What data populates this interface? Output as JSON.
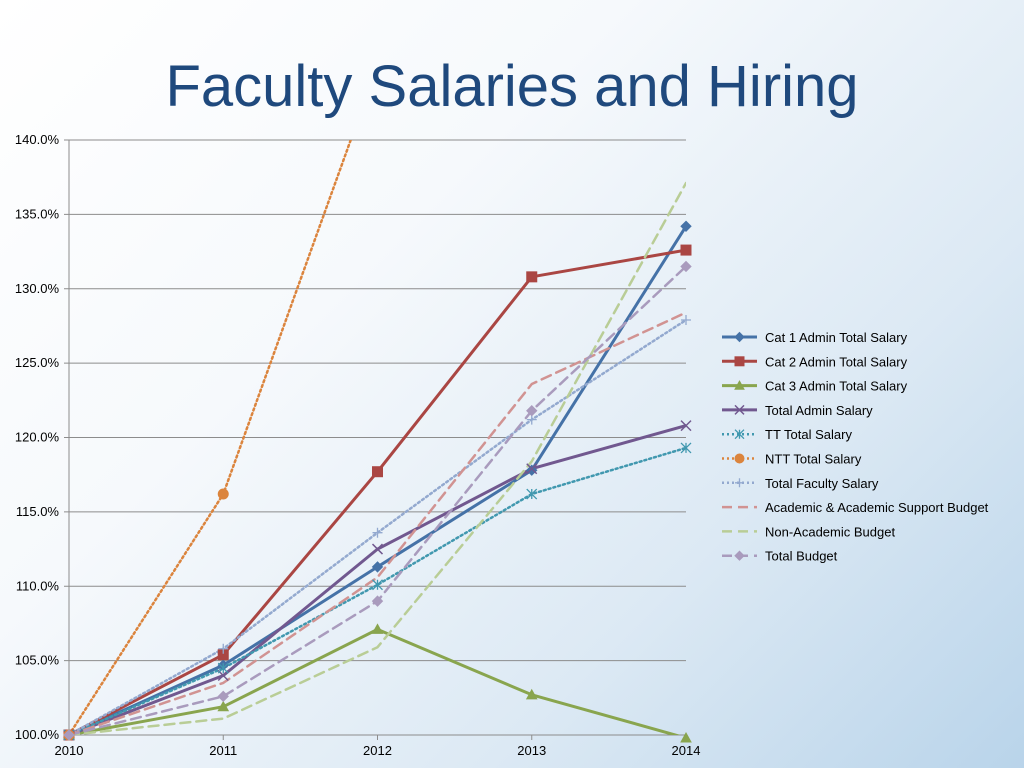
{
  "slide": {
    "title": "Faculty Salaries and Hiring"
  },
  "chart_data": {
    "type": "line",
    "title": "",
    "xlabel": "",
    "ylabel": "",
    "categories": [
      "2010",
      "2011",
      "2012",
      "2013",
      "2014"
    ],
    "ylim": [
      100,
      140
    ],
    "yticks": [
      100,
      105,
      110,
      115,
      120,
      125,
      130,
      135,
      140
    ],
    "ytick_format": "percent_1dp",
    "grid": "horizontal",
    "legend_position": "right",
    "series": [
      {
        "name": "Cat 1 Admin Total Salary",
        "values": [
          100,
          104.7,
          111.3,
          117.8,
          134.2
        ],
        "color": "#4572a7",
        "dash": "solid",
        "marker": "diamond",
        "markers": true
      },
      {
        "name": "Cat 2 Admin Total Salary",
        "values": [
          100,
          105.4,
          117.7,
          130.8,
          132.6
        ],
        "color": "#aa4643",
        "dash": "solid",
        "marker": "square",
        "markers": true
      },
      {
        "name": "Cat 3 Admin Total Salary",
        "values": [
          100,
          101.9,
          107.1,
          102.7,
          99.8
        ],
        "color": "#89a54e",
        "dash": "solid",
        "marker": "triangle",
        "markers": true
      },
      {
        "name": "Total Admin Salary",
        "values": [
          100,
          104.0,
          112.5,
          117.9,
          120.8
        ],
        "color": "#71588f",
        "dash": "solid",
        "marker": "x",
        "markers": true
      },
      {
        "name": "TT Total Salary",
        "values": [
          100,
          104.5,
          110.1,
          116.2,
          119.3
        ],
        "color": "#4198af",
        "dash": "dotted",
        "marker": "asterisk",
        "markers": true
      },
      {
        "name": "NTT Total Salary",
        "values": [
          100,
          116.2,
          145,
          null,
          null
        ],
        "color": "#db843d",
        "dash": "dotted",
        "marker": "circle",
        "markers": true
      },
      {
        "name": "Total Faculty Salary",
        "values": [
          100,
          105.8,
          113.6,
          121.2,
          127.9
        ],
        "color": "#93a9cf",
        "dash": "dotted",
        "marker": "plus",
        "markers": true
      },
      {
        "name": "Academic & Academic Support Budget",
        "values": [
          100,
          103.5,
          110.6,
          123.6,
          128.4
        ],
        "color": "#d19392",
        "dash": "dashed",
        "marker": "none",
        "markers": false
      },
      {
        "name": "Non-Academic Budget",
        "values": [
          100,
          101.1,
          105.9,
          118.4,
          137.1
        ],
        "color": "#b9cd96",
        "dash": "dashed",
        "marker": "none",
        "markers": false
      },
      {
        "name": "Total Budget",
        "values": [
          100,
          102.6,
          109.0,
          121.8,
          131.5
        ],
        "color": "#a99bbd",
        "dash": "dashed",
        "marker": "diamond",
        "markers": true
      }
    ]
  }
}
